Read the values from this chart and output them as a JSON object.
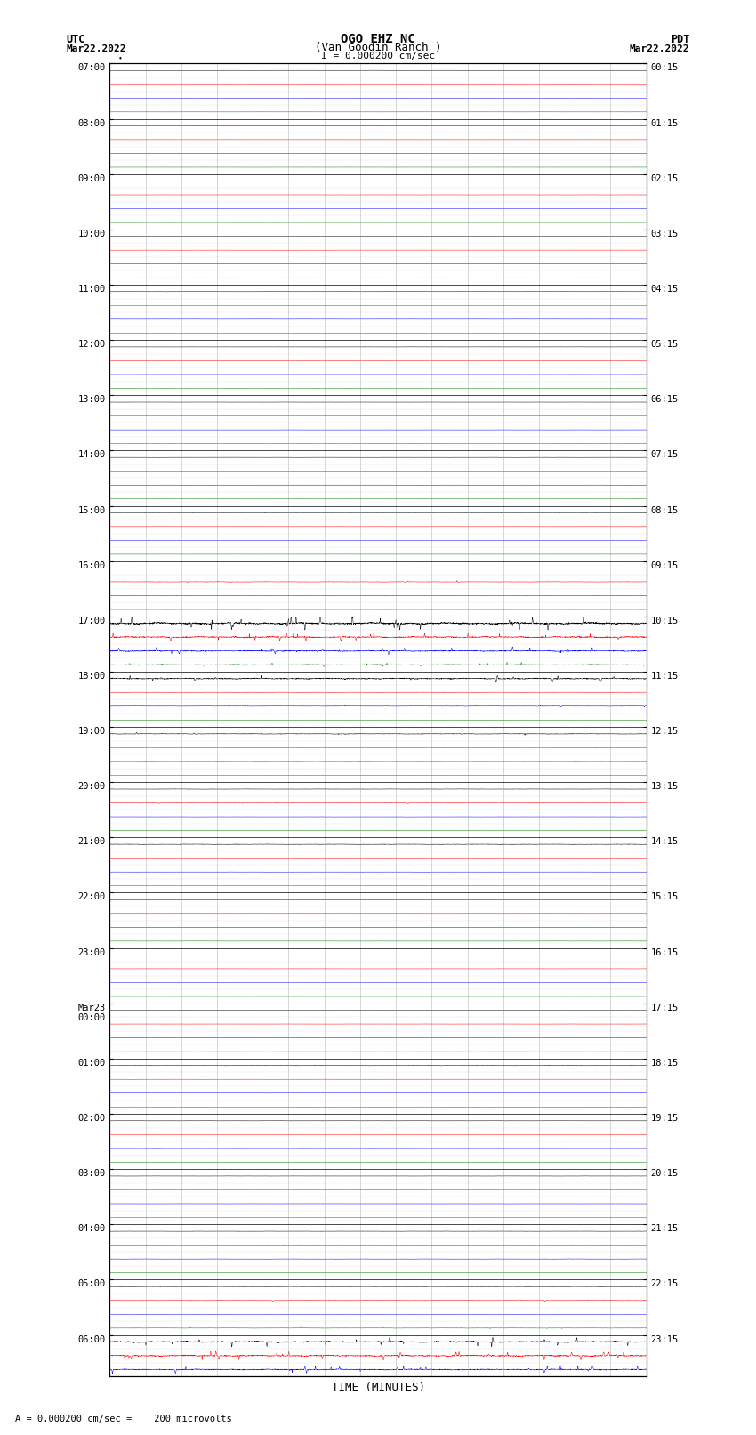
{
  "title_line1": "OGO EHZ NC",
  "title_line2": "(Van Goodin Ranch )",
  "scale_text": "I = 0.000200 cm/sec",
  "left_header": "UTC",
  "left_date": "Mar22,2022",
  "right_header": "PDT",
  "right_date": "Mar22,2022",
  "xlabel": "TIME (MINUTES)",
  "bottom_note": "= 0.000200 cm/sec =    200 microvolts",
  "xmin": 0,
  "xmax": 15,
  "colors": [
    "black",
    "red",
    "blue",
    "green"
  ],
  "left_times": [
    "07:00",
    "",
    "",
    "",
    "08:00",
    "",
    "",
    "",
    "09:00",
    "",
    "",
    "",
    "10:00",
    "",
    "",
    "",
    "11:00",
    "",
    "",
    "",
    "12:00",
    "",
    "",
    "",
    "13:00",
    "",
    "",
    "",
    "14:00",
    "",
    "",
    "",
    "15:00",
    "",
    "",
    "",
    "16:00",
    "",
    "",
    "",
    "17:00",
    "",
    "",
    "",
    "18:00",
    "",
    "",
    "",
    "19:00",
    "",
    "",
    "",
    "20:00",
    "",
    "",
    "",
    "21:00",
    "",
    "",
    "",
    "22:00",
    "",
    "",
    "",
    "23:00",
    "",
    "",
    "",
    "Mar23\n00:00",
    "",
    "",
    "",
    "01:00",
    "",
    "",
    "",
    "02:00",
    "",
    "",
    "",
    "03:00",
    "",
    "",
    "",
    "04:00",
    "",
    "",
    "",
    "05:00",
    "",
    "",
    "",
    "06:00",
    "",
    ""
  ],
  "right_times": [
    "00:15",
    "",
    "",
    "",
    "01:15",
    "",
    "",
    "",
    "02:15",
    "",
    "",
    "",
    "03:15",
    "",
    "",
    "",
    "04:15",
    "",
    "",
    "",
    "05:15",
    "",
    "",
    "",
    "06:15",
    "",
    "",
    "",
    "07:15",
    "",
    "",
    "",
    "08:15",
    "",
    "",
    "",
    "09:15",
    "",
    "",
    "",
    "10:15",
    "",
    "",
    "",
    "11:15",
    "",
    "",
    "",
    "12:15",
    "",
    "",
    "",
    "13:15",
    "",
    "",
    "",
    "14:15",
    "",
    "",
    "",
    "15:15",
    "",
    "",
    "",
    "16:15",
    "",
    "",
    "",
    "17:15",
    "",
    "",
    "",
    "18:15",
    "",
    "",
    "",
    "19:15",
    "",
    "",
    "",
    "20:15",
    "",
    "",
    "",
    "21:15",
    "",
    "",
    "",
    "22:15",
    "",
    "",
    "",
    "23:15",
    "",
    ""
  ],
  "background_color": "white",
  "grid_color": "#888888",
  "seed": 42,
  "noise_levels": {
    "default_black": 0.006,
    "default_red": 0.004,
    "default_blue": 0.004,
    "default_green": 0.003,
    "active_scale": 8.0,
    "medium_scale": 3.0
  },
  "active_time_blocks": [
    {
      "block": 40,
      "color_idx": 0,
      "scale": 12
    },
    {
      "block": 40,
      "color_idx": 1,
      "scale": 12
    },
    {
      "block": 40,
      "color_idx": 2,
      "scale": 12
    },
    {
      "block": 40,
      "color_idx": 3,
      "scale": 12
    },
    {
      "block": 41,
      "color_idx": 0,
      "scale": 10
    },
    {
      "block": 41,
      "color_idx": 1,
      "scale": 6
    },
    {
      "block": 41,
      "color_idx": 2,
      "scale": 6
    },
    {
      "block": 41,
      "color_idx": 3,
      "scale": 6
    },
    {
      "block": 92,
      "color_idx": 0,
      "scale": 8
    },
    {
      "block": 92,
      "color_idx": 1,
      "scale": 8
    },
    {
      "block": 92,
      "color_idx": 2,
      "scale": 8
    },
    {
      "block": 92,
      "color_idx": 3,
      "scale": 6
    },
    {
      "block": 93,
      "color_idx": 0,
      "scale": 6
    },
    {
      "block": 93,
      "color_idx": 1,
      "scale": 8
    },
    {
      "block": 93,
      "color_idx": 2,
      "scale": 8
    },
    {
      "block": 93,
      "color_idx": 3,
      "scale": 4
    }
  ]
}
